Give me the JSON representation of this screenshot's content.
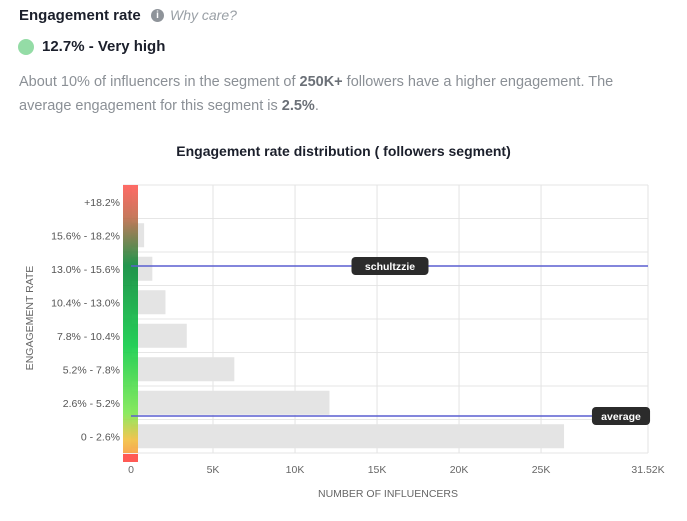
{
  "header": {
    "title": "Engagement rate",
    "why_care": "Why care?",
    "info_icon": "info-icon",
    "rate_label": "12.7% - Very high",
    "rate_color": "#94dca6"
  },
  "description": {
    "p1": "About 10% of influencers in the segment of ",
    "b1": "250K+",
    "p2": " followers have a higher engagement. The average engagement for this segment is ",
    "b2": "2.5%",
    "p3": "."
  },
  "chart_data": {
    "type": "bar",
    "orientation": "horizontal",
    "title": "Engagement rate distribution ( followers segment)",
    "xlabel": "NUMBER OF INFLUENCERS",
    "ylabel": "ENGAGEMENT RATE",
    "categories": [
      "+18.2%",
      "15.6% - 18.2%",
      "13.0% - 15.6%",
      "10.4% - 13.0%",
      "7.8% - 10.4%",
      "5.2% - 7.8%",
      "2.6% - 5.2%",
      "0 - 2.6%"
    ],
    "values": [
      0,
      800,
      1300,
      2100,
      3400,
      6300,
      12100,
      26400
    ],
    "xlim": [
      0,
      31520
    ],
    "xticks": [
      {
        "v": 0,
        "label": "0"
      },
      {
        "v": 5000,
        "label": "5K"
      },
      {
        "v": 10000,
        "label": "10K"
      },
      {
        "v": 15000,
        "label": "15K"
      },
      {
        "v": 20000,
        "label": "20K"
      },
      {
        "v": 25000,
        "label": "25K"
      },
      {
        "v": 31520,
        "label": "31.52K"
      }
    ],
    "markers": [
      {
        "label": "schultzzie",
        "rate": "12.7%",
        "row": 2
      },
      {
        "label": "average",
        "rate": "2.5%",
        "row": 6
      }
    ],
    "bar_color": "#e4e4e4",
    "marker_color": "#5a5fd0",
    "grid": true
  }
}
